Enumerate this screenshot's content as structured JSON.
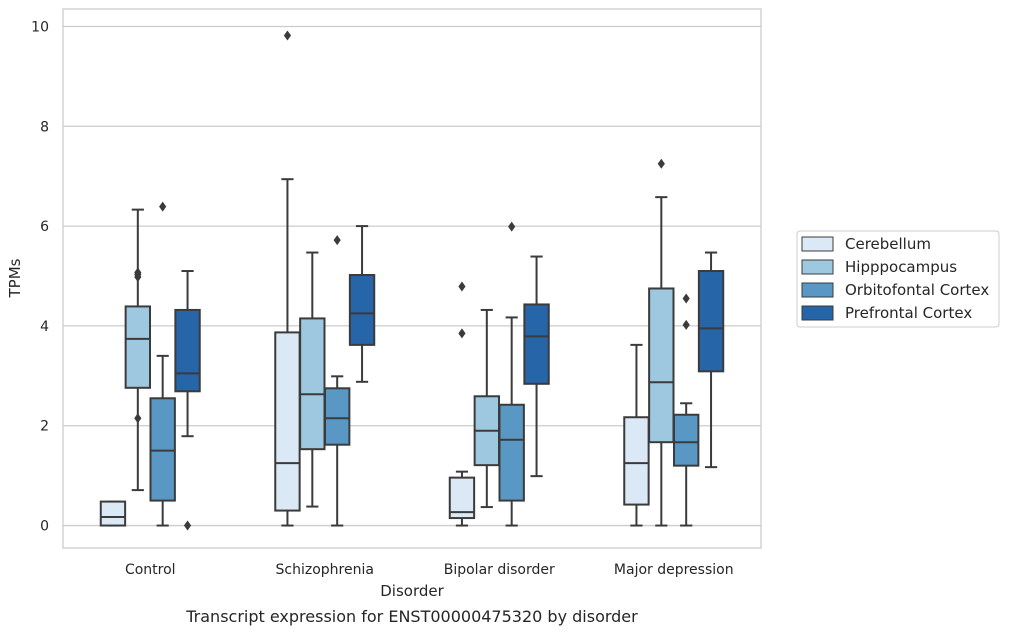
{
  "chart_data": {
    "type": "box",
    "caption": "Transcript expression for ENST00000475320 by disorder",
    "xlabel": "Disorder",
    "ylabel": "TPMs",
    "ylim": [
      -0.45,
      10.35
    ],
    "yticks": [
      0,
      2,
      4,
      6,
      8,
      10
    ],
    "grid": "horizontal",
    "legend_position": "right",
    "categories": [
      "Control",
      "Schizophrenia",
      "Bipolar disorder",
      "Major depression"
    ],
    "series": [
      {
        "name": "Cerebellum",
        "color": "#dbe8f5",
        "boxes": [
          {
            "whislo": 0.0,
            "q1": 0.0,
            "med": 0.17,
            "q3": 0.48,
            "whishi": 0.48,
            "fliers": []
          },
          {
            "whislo": 0.0,
            "q1": 0.3,
            "med": 1.25,
            "q3": 3.87,
            "whishi": 6.94,
            "fliers": [
              9.82
            ]
          },
          {
            "whislo": 0.0,
            "q1": 0.15,
            "med": 0.27,
            "q3": 0.96,
            "whishi": 1.08,
            "fliers": [
              3.85,
              4.79
            ]
          },
          {
            "whislo": 0.0,
            "q1": 0.42,
            "med": 1.25,
            "q3": 2.17,
            "whishi": 3.62,
            "fliers": []
          }
        ]
      },
      {
        "name": "Hipppocampus",
        "color": "#9ec8e0",
        "boxes": [
          {
            "whislo": 0.71,
            "q1": 2.76,
            "med": 3.74,
            "q3": 4.39,
            "whishi": 6.33,
            "fliers": [
              2.15,
              4.98,
              5.03,
              5.07
            ]
          },
          {
            "whislo": 0.38,
            "q1": 1.53,
            "med": 2.63,
            "q3": 4.15,
            "whishi": 5.47,
            "fliers": []
          },
          {
            "whislo": 0.37,
            "q1": 1.21,
            "med": 1.9,
            "q3": 2.59,
            "whishi": 4.32,
            "fliers": []
          },
          {
            "whislo": 0.0,
            "q1": 1.67,
            "med": 2.87,
            "q3": 4.75,
            "whishi": 6.58,
            "fliers": [
              7.25
            ]
          }
        ]
      },
      {
        "name": "Orbitofontal Cortex",
        "color": "#5998c5",
        "boxes": [
          {
            "whislo": 0.0,
            "q1": 0.5,
            "med": 1.5,
            "q3": 2.55,
            "whishi": 3.4,
            "fliers": [
              6.39
            ]
          },
          {
            "whislo": 0.0,
            "q1": 1.62,
            "med": 2.15,
            "q3": 2.75,
            "whishi": 2.99,
            "fliers": [
              5.72
            ]
          },
          {
            "whislo": 0.0,
            "q1": 0.5,
            "med": 1.72,
            "q3": 2.42,
            "whishi": 4.17,
            "fliers": [
              5.99
            ]
          },
          {
            "whislo": 0.0,
            "q1": 1.2,
            "med": 1.67,
            "q3": 2.22,
            "whishi": 2.45,
            "fliers": [
              4.02,
              4.55
            ]
          }
        ]
      },
      {
        "name": "Prefrontal Cortex",
        "color": "#2565a8",
        "boxes": [
          {
            "whislo": 1.79,
            "q1": 2.69,
            "med": 3.05,
            "q3": 4.32,
            "whishi": 5.1,
            "fliers": [
              0.0
            ]
          },
          {
            "whislo": 2.88,
            "q1": 3.62,
            "med": 4.25,
            "q3": 5.02,
            "whishi": 6.0,
            "fliers": []
          },
          {
            "whislo": 0.99,
            "q1": 2.84,
            "med": 3.79,
            "q3": 4.43,
            "whishi": 5.39,
            "fliers": []
          },
          {
            "whislo": 1.17,
            "q1": 3.09,
            "med": 3.95,
            "q3": 5.1,
            "whishi": 5.47,
            "fliers": []
          }
        ]
      }
    ]
  }
}
